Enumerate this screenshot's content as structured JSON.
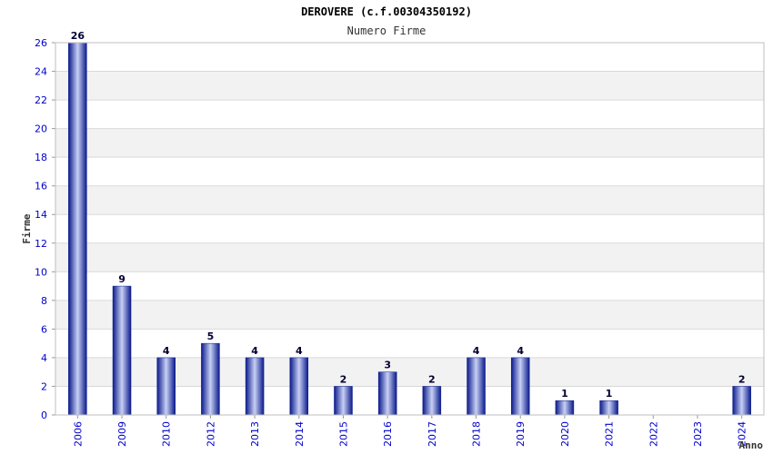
{
  "chart_data": {
    "type": "bar",
    "title": "DEROVERE (c.f.00304350192)",
    "subtitle": "Numero Firme",
    "xlabel": "Anno",
    "ylabel": "Firme",
    "categories": [
      "2006",
      "2009",
      "2010",
      "2012",
      "2013",
      "2014",
      "2015",
      "2016",
      "2017",
      "2018",
      "2019",
      "2020",
      "2021",
      "2022",
      "2023",
      "2024"
    ],
    "values": [
      26,
      9,
      4,
      5,
      4,
      4,
      2,
      3,
      2,
      4,
      4,
      1,
      1,
      0,
      0,
      2
    ],
    "data_labels": [
      "26",
      "9",
      "4",
      "5",
      "4",
      "4",
      "2",
      "3",
      "2",
      "4",
      "4",
      "1",
      "1",
      "",
      "",
      "2"
    ],
    "ylim": [
      0,
      26
    ],
    "yticks": [
      "0",
      "2",
      "4",
      "6",
      "8",
      "10",
      "12",
      "14",
      "16",
      "18",
      "20",
      "22",
      "24",
      "26"
    ],
    "grid": true,
    "colors": {
      "bar_dark": "#0a1a8c",
      "bar_light": "#c8d0f4",
      "tick_label": "#0000cc",
      "band": "#f2f2f2",
      "gridline": "#d9d9d9"
    }
  }
}
